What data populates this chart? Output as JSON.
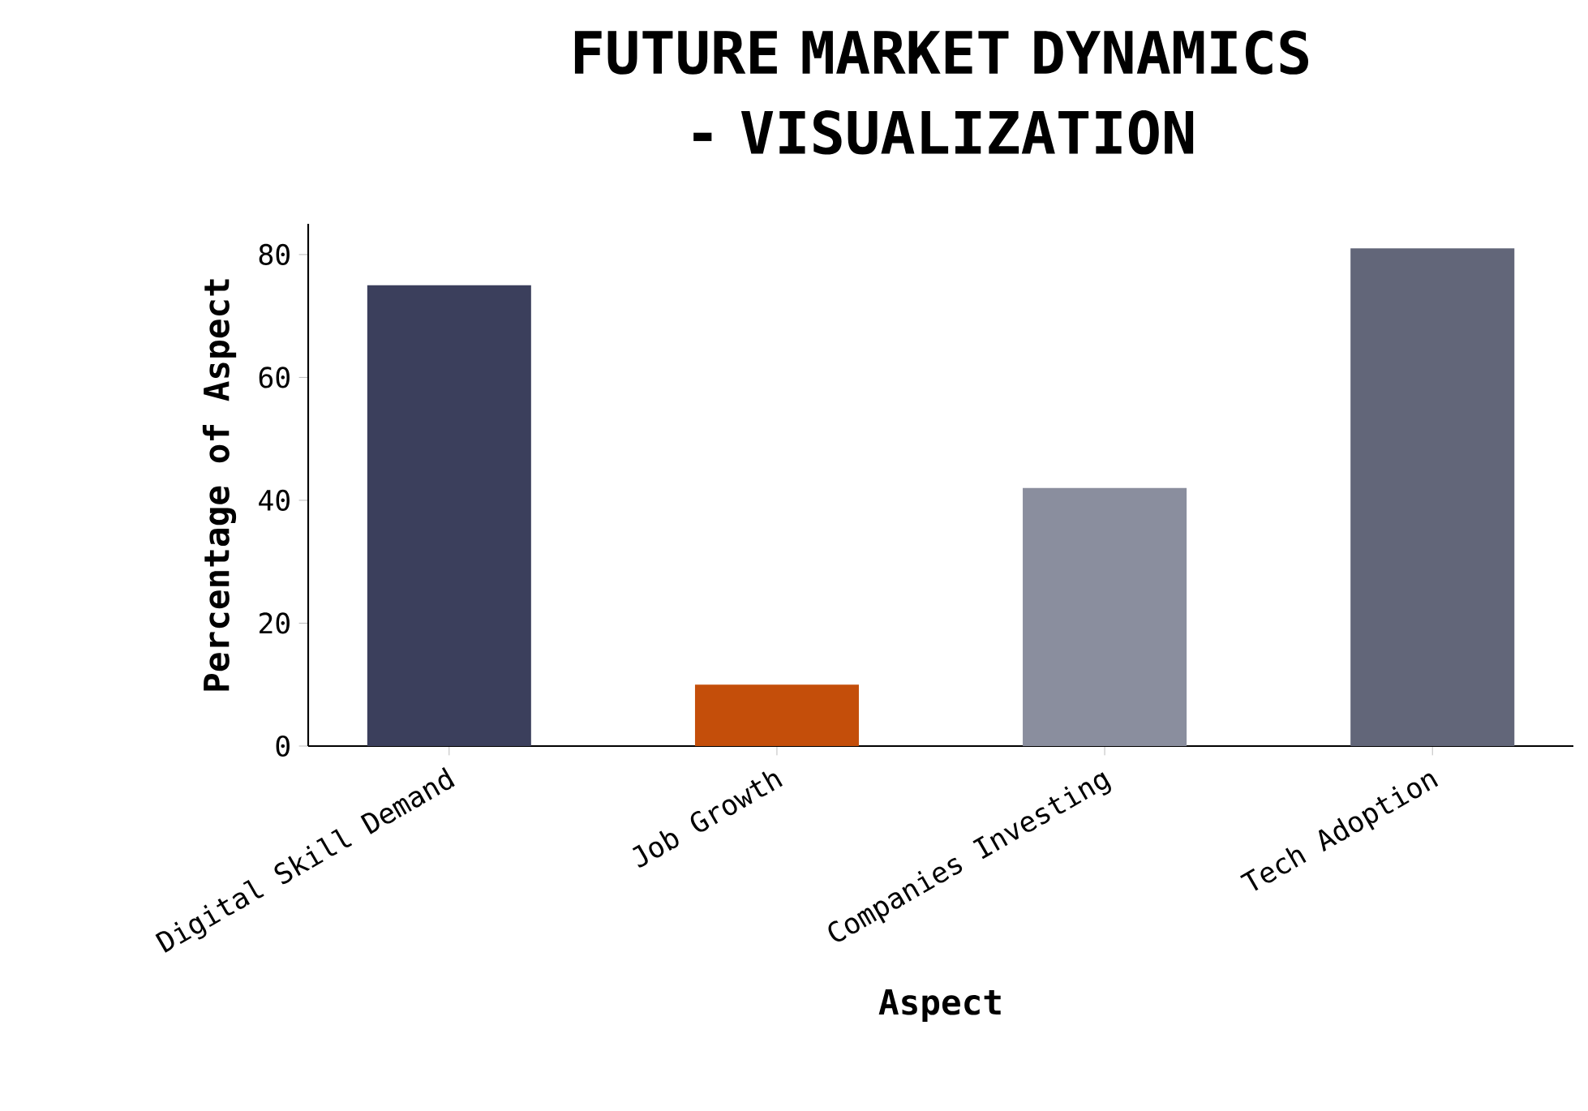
{
  "chart_data": {
    "type": "bar",
    "title": "FUTURE MARKET DYNAMICS - VISUALIZATION",
    "xlabel": "Aspect",
    "ylabel": "Percentage of Aspect",
    "categories": [
      "Digital Skill Demand",
      "Job Growth",
      "Companies Investing",
      "Tech Adoption"
    ],
    "values": [
      75,
      10,
      42,
      81
    ],
    "colors": [
      "#3b3f5c",
      "#c44e0a",
      "#8a8e9e",
      "#626679"
    ],
    "ylim": [
      0,
      85
    ],
    "yticks": [
      0,
      20,
      40,
      60,
      80
    ],
    "grid": false
  }
}
